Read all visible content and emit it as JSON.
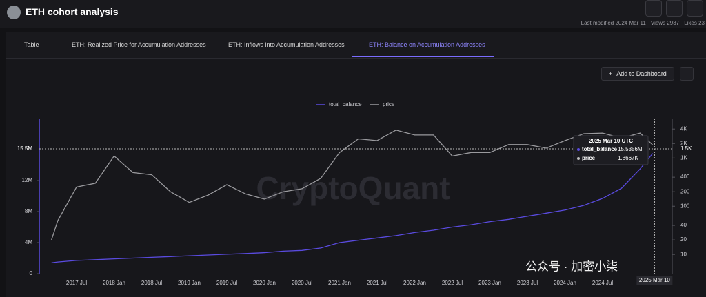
{
  "header": {
    "title": "ETH cohort analysis",
    "meta": "Last modified 2024 Mar 11 · Views 2937 · Likes 23"
  },
  "tabs": [
    "Table",
    "ETH: Realized Price for Accumulation Addresses",
    "ETH: Inflows into Accumulation Addresses",
    "ETH: Balance on Accumulation Addresses"
  ],
  "button": "Add to Dashboard",
  "watermark": "CryptoQuant",
  "overlay_text": "公众号 · 加密小柒",
  "tooltip": {
    "date": "2025 Mar 10 UTC",
    "rows": [
      {
        "name": "total_balance",
        "value": "15.5356M"
      },
      {
        "name": "price",
        "value": "1.8667K"
      }
    ]
  },
  "crosshair": {
    "x_label": "2025 Mar 10",
    "y_label": "15.5M",
    "y2_label": "1.5K"
  },
  "chart_data": {
    "type": "line",
    "x": [
      "2017 Mar",
      "2017 Apr",
      "2017 Jul",
      "2017 Oct",
      "2018 Jan",
      "2018 Apr",
      "2018 Jul",
      "2018 Oct",
      "2019 Jan",
      "2019 Apr",
      "2019 Jul",
      "2019 Oct",
      "2020 Jan",
      "2020 Apr",
      "2020 Jul",
      "2020 Oct",
      "2021 Jan",
      "2021 Apr",
      "2021 Jul",
      "2021 Oct",
      "2022 Jan",
      "2022 Apr",
      "2022 Jul",
      "2022 Oct",
      "2023 Jan",
      "2023 Apr",
      "2023 Jul",
      "2023 Oct",
      "2024 Jan",
      "2024 Apr",
      "2024 Jul",
      "2024 Oct",
      "2025 Jan",
      "2025 Mar"
    ],
    "series": [
      {
        "name": "total_balance",
        "color": "#5a4be0",
        "values": [
          1.4,
          1.5,
          1.7,
          1.8,
          1.9,
          2.0,
          2.1,
          2.2,
          2.3,
          2.4,
          2.5,
          2.6,
          2.7,
          2.9,
          3.0,
          3.3,
          4.0,
          4.3,
          4.6,
          4.9,
          5.3,
          5.6,
          6.0,
          6.3,
          6.7,
          7.0,
          7.4,
          7.8,
          8.2,
          8.8,
          9.7,
          11.0,
          13.5,
          15.5
        ]
      },
      {
        "name": "price",
        "color": "#9a9a9e",
        "axis": "y2",
        "values": [
          20,
          50,
          250,
          300,
          1100,
          500,
          450,
          200,
          120,
          170,
          280,
          180,
          140,
          200,
          230,
          380,
          1300,
          2500,
          2300,
          3800,
          3000,
          3000,
          1100,
          1300,
          1300,
          1900,
          1900,
          1600,
          2300,
          3200,
          3300,
          2600,
          3300,
          1867
        ]
      }
    ],
    "xticks": [
      "2017 Jul",
      "2018 Jan",
      "2018 Jul",
      "2019 Jan",
      "2019 Jul",
      "2020 Jan",
      "2020 Jul",
      "2021 Jan",
      "2021 Jul",
      "2022 Jan",
      "2022 Jul",
      "2023 Jan",
      "2023 Jul",
      "2024 Jan",
      "2024 Jul"
    ],
    "ylim": [
      0,
      20
    ],
    "yticks": [
      0,
      {
        "value": 4,
        "label": "4M"
      },
      {
        "value": 8,
        "label": "8M"
      },
      {
        "value": 12,
        "label": "12M"
      }
    ],
    "y2lim": [
      4,
      6600
    ],
    "y2log": true,
    "y2ticks": [
      10,
      20,
      40,
      100,
      200,
      400,
      {
        "value": 1000,
        "label": "1K"
      },
      {
        "value": 2000,
        "label": "2K"
      },
      {
        "value": 4000,
        "label": "4K"
      }
    ],
    "legend": "top"
  }
}
